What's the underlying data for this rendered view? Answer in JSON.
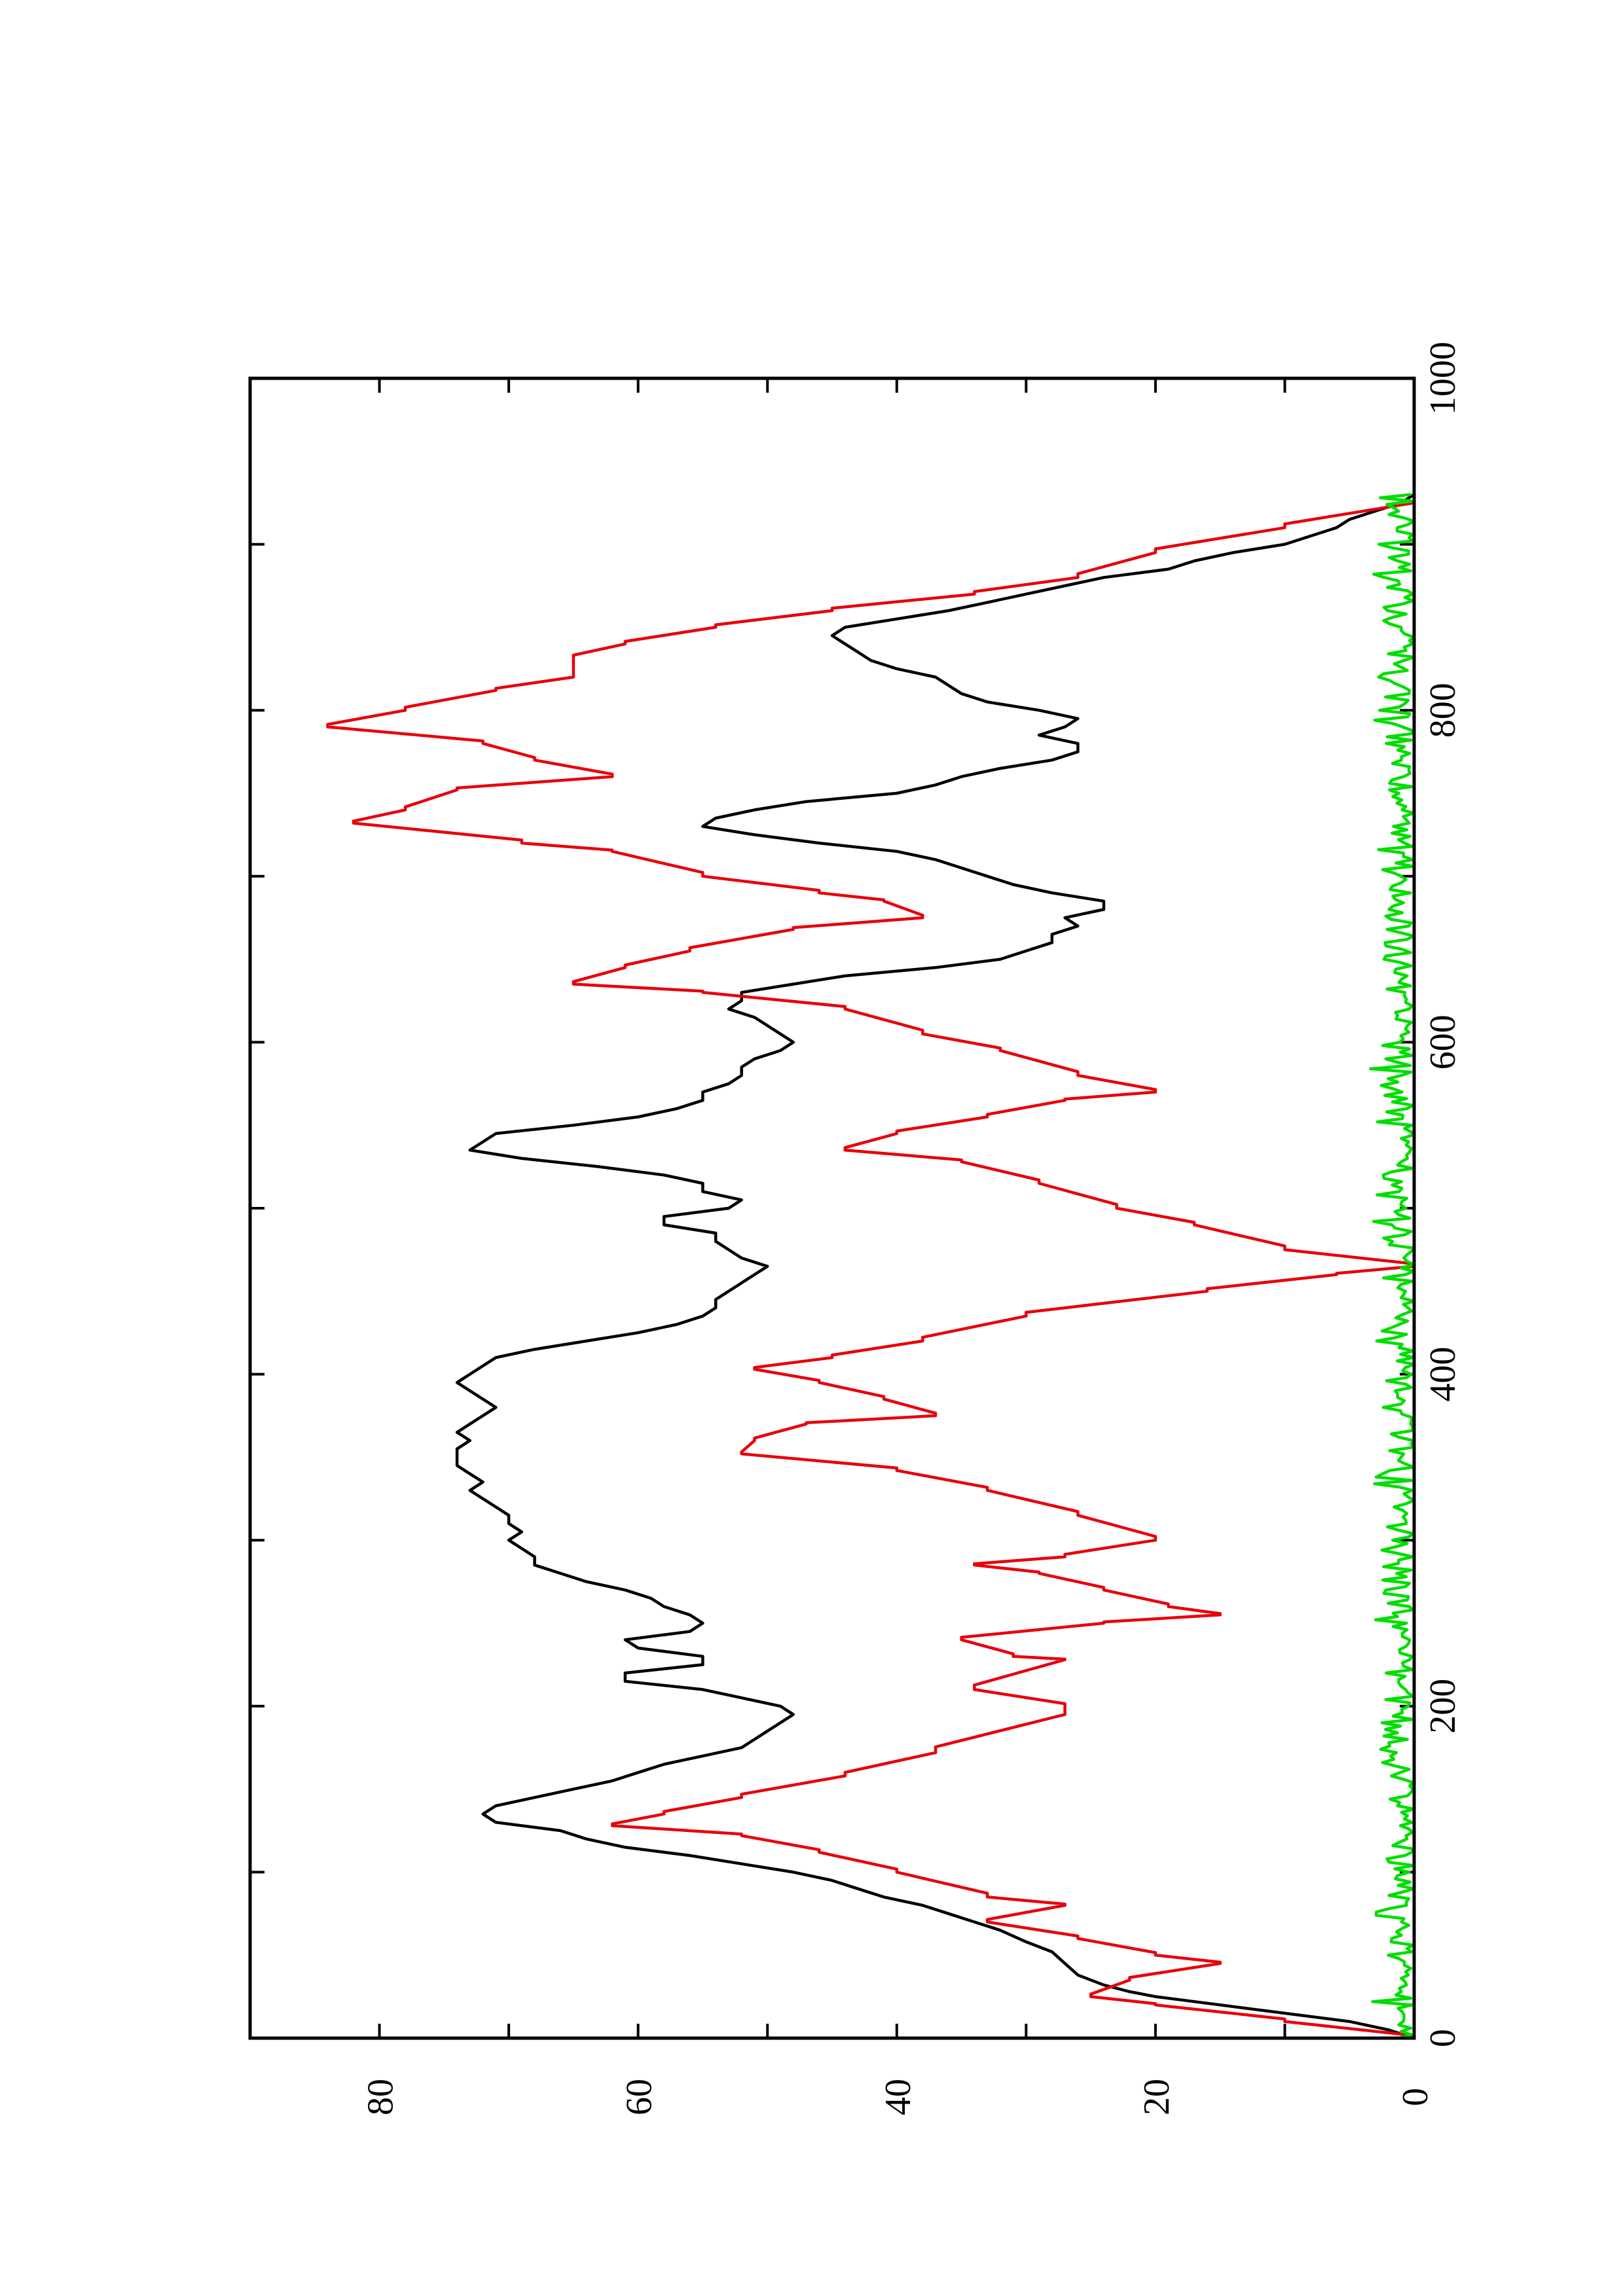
{
  "chart_data": {
    "type": "line",
    "orientation": "rotated-90-ccw",
    "title": "",
    "xlabel": "",
    "ylabel": "",
    "xlim": [
      0,
      1000
    ],
    "ylim": [
      0,
      90
    ],
    "x_ticks": [
      0,
      200,
      400,
      600,
      800,
      1000
    ],
    "x_minor_ticks": [
      100,
      300,
      500,
      700,
      900
    ],
    "y_ticks": [
      0,
      20,
      40,
      60,
      80
    ],
    "y_minor_ticks": [
      10,
      30,
      50,
      70
    ],
    "grid": false,
    "legend": "none",
    "series": [
      {
        "color": "#000000",
        "style": "jagged",
        "points": [
          [
            0,
            0
          ],
          [
            5,
            2
          ],
          [
            10,
            5
          ],
          [
            14,
            9
          ],
          [
            18,
            13
          ],
          [
            22,
            17
          ],
          [
            25,
            20
          ],
          [
            28,
            22
          ],
          [
            32,
            24
          ],
          [
            38,
            26
          ],
          [
            45,
            27
          ],
          [
            52,
            28
          ],
          [
            58,
            30
          ],
          [
            65,
            32
          ],
          [
            70,
            34
          ],
          [
            75,
            36
          ],
          [
            80,
            38
          ],
          [
            85,
            41
          ],
          [
            90,
            43
          ],
          [
            95,
            45
          ],
          [
            100,
            48
          ],
          [
            105,
            52
          ],
          [
            110,
            56
          ],
          [
            115,
            61
          ],
          [
            120,
            64
          ],
          [
            125,
            66
          ],
          [
            130,
            71
          ],
          [
            135,
            72
          ],
          [
            140,
            71
          ],
          [
            145,
            68
          ],
          [
            150,
            65
          ],
          [
            155,
            62
          ],
          [
            160,
            60
          ],
          [
            165,
            58
          ],
          [
            170,
            55
          ],
          [
            175,
            52
          ],
          [
            180,
            51
          ],
          [
            185,
            50
          ],
          [
            190,
            49
          ],
          [
            195,
            48
          ],
          [
            200,
            49
          ],
          [
            205,
            52
          ],
          [
            210,
            55
          ],
          [
            215,
            61
          ],
          [
            220,
            61
          ],
          [
            225,
            55
          ],
          [
            230,
            55
          ],
          [
            235,
            60
          ],
          [
            240,
            61
          ],
          [
            245,
            56
          ],
          [
            250,
            55
          ],
          [
            255,
            56
          ],
          [
            260,
            58
          ],
          [
            265,
            59
          ],
          [
            270,
            61
          ],
          [
            275,
            64
          ],
          [
            280,
            66
          ],
          [
            285,
            68
          ],
          [
            290,
            68
          ],
          [
            295,
            69
          ],
          [
            300,
            70
          ],
          [
            305,
            69
          ],
          [
            310,
            70
          ],
          [
            315,
            70
          ],
          [
            320,
            71
          ],
          [
            325,
            72
          ],
          [
            330,
            73
          ],
          [
            335,
            72
          ],
          [
            340,
            73
          ],
          [
            345,
            74
          ],
          [
            350,
            74
          ],
          [
            355,
            74
          ],
          [
            360,
            73
          ],
          [
            365,
            74
          ],
          [
            370,
            73
          ],
          [
            375,
            72
          ],
          [
            380,
            71
          ],
          [
            385,
            72
          ],
          [
            390,
            73
          ],
          [
            395,
            74
          ],
          [
            400,
            73
          ],
          [
            405,
            72
          ],
          [
            410,
            71
          ],
          [
            415,
            68
          ],
          [
            420,
            64
          ],
          [
            425,
            60
          ],
          [
            430,
            57
          ],
          [
            435,
            55
          ],
          [
            440,
            54
          ],
          [
            445,
            54
          ],
          [
            450,
            53
          ],
          [
            455,
            52
          ],
          [
            460,
            51
          ],
          [
            465,
            50
          ],
          [
            470,
            52
          ],
          [
            475,
            53
          ],
          [
            480,
            54
          ],
          [
            485,
            54
          ],
          [
            490,
            58
          ],
          [
            495,
            58
          ],
          [
            500,
            53
          ],
          [
            505,
            52
          ],
          [
            510,
            55
          ],
          [
            515,
            55
          ],
          [
            520,
            58
          ],
          [
            525,
            63
          ],
          [
            530,
            69
          ],
          [
            535,
            73
          ],
          [
            540,
            72
          ],
          [
            545,
            71
          ],
          [
            550,
            65
          ],
          [
            555,
            60
          ],
          [
            560,
            57
          ],
          [
            565,
            55
          ],
          [
            570,
            55
          ],
          [
            575,
            53
          ],
          [
            580,
            52
          ],
          [
            585,
            52
          ],
          [
            590,
            51
          ],
          [
            595,
            49
          ],
          [
            600,
            48
          ],
          [
            605,
            49
          ],
          [
            610,
            50
          ],
          [
            615,
            51
          ],
          [
            620,
            53
          ],
          [
            625,
            52
          ],
          [
            630,
            52
          ],
          [
            635,
            48
          ],
          [
            640,
            44
          ],
          [
            645,
            37
          ],
          [
            650,
            32
          ],
          [
            655,
            30
          ],
          [
            660,
            28
          ],
          [
            665,
            28
          ],
          [
            670,
            26
          ],
          [
            675,
            27
          ],
          [
            680,
            24
          ],
          [
            685,
            24
          ],
          [
            690,
            28
          ],
          [
            695,
            31
          ],
          [
            700,
            33
          ],
          [
            705,
            35
          ],
          [
            710,
            37
          ],
          [
            715,
            40
          ],
          [
            720,
            46
          ],
          [
            725,
            51
          ],
          [
            730,
            55
          ],
          [
            735,
            54
          ],
          [
            740,
            51
          ],
          [
            745,
            47
          ],
          [
            750,
            40
          ],
          [
            755,
            37
          ],
          [
            760,
            35
          ],
          [
            765,
            32
          ],
          [
            770,
            28
          ],
          [
            775,
            26
          ],
          [
            780,
            26
          ],
          [
            785,
            29
          ],
          [
            790,
            27
          ],
          [
            795,
            26
          ],
          [
            800,
            29
          ],
          [
            805,
            33
          ],
          [
            810,
            35
          ],
          [
            815,
            36
          ],
          [
            820,
            37
          ],
          [
            825,
            40
          ],
          [
            830,
            42
          ],
          [
            835,
            43
          ],
          [
            840,
            44
          ],
          [
            845,
            45
          ],
          [
            850,
            44
          ],
          [
            855,
            40
          ],
          [
            860,
            36
          ],
          [
            865,
            33
          ],
          [
            870,
            30
          ],
          [
            875,
            27
          ],
          [
            880,
            24
          ],
          [
            885,
            19
          ],
          [
            890,
            17
          ],
          [
            895,
            14
          ],
          [
            900,
            10
          ],
          [
            905,
            8
          ],
          [
            910,
            6
          ],
          [
            915,
            5
          ],
          [
            920,
            3
          ],
          [
            925,
            1
          ],
          [
            930,
            0
          ]
        ]
      },
      {
        "color": "#e8000b",
        "style": "step",
        "points": [
          [
            0,
            0
          ],
          [
            10,
            10
          ],
          [
            20,
            20
          ],
          [
            25,
            25
          ],
          [
            35,
            22
          ],
          [
            45,
            15
          ],
          [
            50,
            20
          ],
          [
            60,
            26
          ],
          [
            70,
            33
          ],
          [
            80,
            27
          ],
          [
            85,
            33
          ],
          [
            100,
            40
          ],
          [
            112,
            46
          ],
          [
            122,
            52
          ],
          [
            128,
            62
          ],
          [
            135,
            58
          ],
          [
            145,
            52
          ],
          [
            158,
            44
          ],
          [
            172,
            37
          ],
          [
            195,
            27
          ],
          [
            200,
            27
          ],
          [
            210,
            34
          ],
          [
            228,
            27
          ],
          [
            230,
            31
          ],
          [
            240,
            35
          ],
          [
            250,
            24
          ],
          [
            255,
            15
          ],
          [
            260,
            19
          ],
          [
            270,
            24
          ],
          [
            280,
            29
          ],
          [
            285,
            34
          ],
          [
            290,
            27
          ],
          [
            300,
            20
          ],
          [
            315,
            26
          ],
          [
            330,
            33
          ],
          [
            342,
            40
          ],
          [
            352,
            52
          ],
          [
            360,
            51
          ],
          [
            370,
            47
          ],
          [
            375,
            37
          ],
          [
            385,
            41
          ],
          [
            395,
            46
          ],
          [
            403,
            51
          ],
          [
            410,
            45
          ],
          [
            420,
            38
          ],
          [
            435,
            30
          ],
          [
            450,
            16
          ],
          [
            460,
            6
          ],
          [
            465,
            0
          ],
          [
            475,
            10
          ],
          [
            490,
            17
          ],
          [
            500,
            23
          ],
          [
            515,
            29
          ],
          [
            528,
            35
          ],
          [
            535,
            44
          ],
          [
            545,
            40
          ],
          [
            555,
            33
          ],
          [
            565,
            27
          ],
          [
            570,
            20
          ],
          [
            580,
            26
          ],
          [
            595,
            32
          ],
          [
            605,
            38
          ],
          [
            620,
            44
          ],
          [
            630,
            55
          ],
          [
            635,
            65
          ],
          [
            645,
            61
          ],
          [
            655,
            56
          ],
          [
            668,
            48
          ],
          [
            675,
            38
          ],
          [
            685,
            41
          ],
          [
            690,
            46
          ],
          [
            700,
            55
          ],
          [
            715,
            62
          ],
          [
            720,
            69
          ],
          [
            732,
            82
          ],
          [
            740,
            78
          ],
          [
            752,
            74
          ],
          [
            760,
            62
          ],
          [
            770,
            68
          ],
          [
            780,
            72
          ],
          [
            790,
            84
          ],
          [
            800,
            78
          ],
          [
            812,
            71
          ],
          [
            820,
            65
          ],
          [
            825,
            65
          ],
          [
            832,
            65
          ],
          [
            840,
            61
          ],
          [
            850,
            54
          ],
          [
            860,
            45
          ],
          [
            870,
            34
          ],
          [
            880,
            26
          ],
          [
            895,
            20
          ],
          [
            910,
            10
          ],
          [
            925,
            0
          ]
        ]
      },
      {
        "color": "#00dd00",
        "style": "noise",
        "amplitude": 2.5,
        "x_range": [
          0,
          930
        ]
      }
    ]
  }
}
